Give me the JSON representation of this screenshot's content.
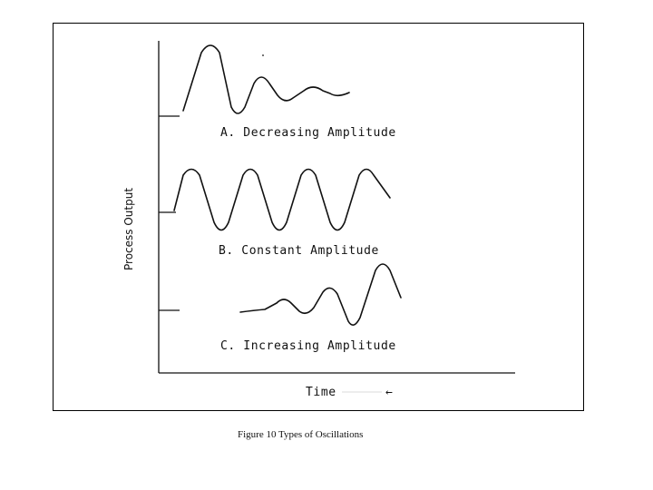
{
  "figure": {
    "y_axis_label": "Process Output",
    "x_axis_label": "Time",
    "x_axis_arrow": "←",
    "caption": "Figure 10   Types of Oscillations"
  },
  "curves": [
    {
      "id": "A",
      "label": "A.  Decreasing  Amplitude"
    },
    {
      "id": "B",
      "label": "B.  Constant  Amplitude"
    },
    {
      "id": "C",
      "label": "C.  Increasing  Amplitude"
    }
  ]
}
